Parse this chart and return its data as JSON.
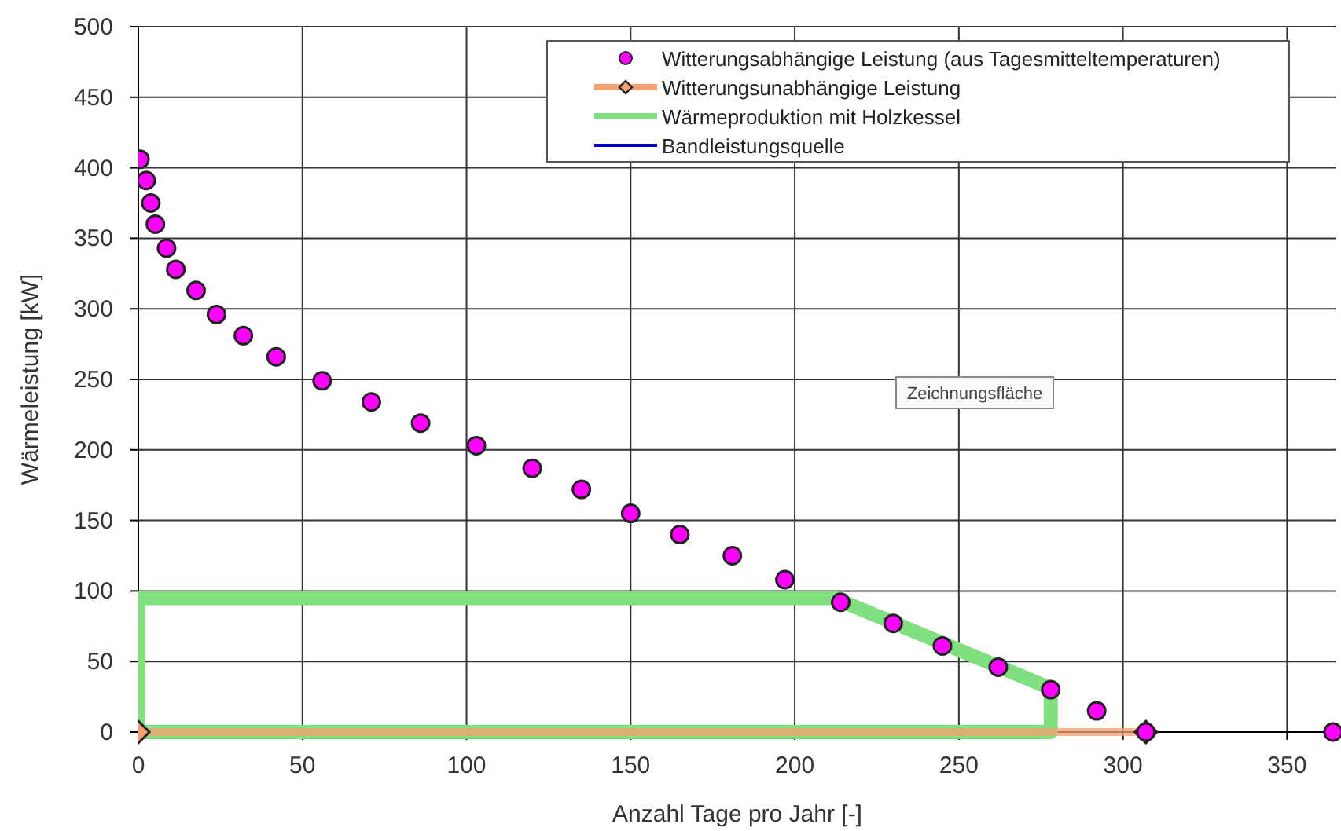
{
  "chart_data": {
    "type": "scatter",
    "xlabel": "Anzahl Tage pro Jahr [-]",
    "ylabel": "Wärmeleistung [kW]",
    "xlim": [
      0,
      365
    ],
    "xticks": [
      0,
      50,
      100,
      150,
      200,
      250,
      300,
      350
    ],
    "ylim": [
      0,
      500
    ],
    "yticks": [
      0,
      50,
      100,
      150,
      200,
      250,
      300,
      350,
      400,
      450,
      500
    ],
    "grid": true,
    "legend": "top right",
    "annotations": [
      "Zeichnungsfläche"
    ],
    "series": [
      {
        "name": "Witterungsabhängige Leistung (aus Tagesmitteltemperaturen)",
        "marker": "circle",
        "color": "#ff00ff",
        "x": [
          0.5,
          2.4,
          3.8,
          5.2,
          8.6,
          11.4,
          17.6,
          23.8,
          32,
          42,
          56,
          71,
          86,
          103,
          120,
          135,
          150,
          165,
          181,
          197,
          214,
          230,
          245,
          262,
          278,
          292,
          307,
          364
        ],
        "values": [
          406,
          391,
          375,
          360,
          343,
          328,
          313,
          296,
          281,
          266,
          249,
          234,
          219,
          203,
          187,
          172,
          155,
          140,
          125,
          108,
          92,
          77,
          61,
          46,
          30,
          15,
          0,
          0
        ]
      },
      {
        "name": "Witterungsunabhängige Leistung",
        "type": "line",
        "marker": "diamond",
        "color": "#f4a070",
        "x": [
          0,
          307
        ],
        "values": [
          0,
          0
        ]
      },
      {
        "name": "Wärmeproduktion mit Holzkessel",
        "type": "line",
        "marker": "none",
        "color": "#80e080",
        "x": [
          0,
          0,
          212,
          278,
          278,
          1
        ],
        "values": [
          0,
          95,
          95,
          31,
          0,
          0
        ]
      },
      {
        "name": "Bandleistungsquelle",
        "type": "line",
        "marker": "none",
        "color": "#0000cc"
      }
    ]
  }
}
